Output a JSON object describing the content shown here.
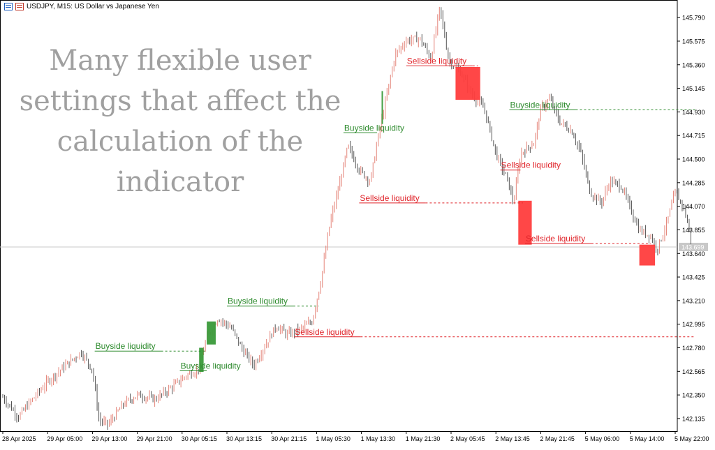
{
  "header": {
    "symbol_line": "USDJPY, M15:  US Dollar vs Japanese Yen"
  },
  "overlay": {
    "lines": [
      "Many flexible user",
      "settings that affect the",
      "calculation of the",
      "indicator"
    ]
  },
  "chart_data": {
    "type": "candlestick",
    "symbol": "USDJPY",
    "timeframe": "M15",
    "title": "USDJPY, M15:  US Dollar vs Japanese Yen",
    "current_price": "143.699",
    "ylim": [
      142.02,
      145.95
    ],
    "y_ticks": [
      "145.790",
      "145.575",
      "145.360",
      "145.145",
      "144.930",
      "144.715",
      "144.500",
      "144.285",
      "144.070",
      "143.855",
      "143.640",
      "143.425",
      "143.210",
      "142.995",
      "142.780",
      "142.565",
      "142.350",
      "142.135"
    ],
    "x_ticks": [
      "28 Apr 2025",
      "29 Apr 05:00",
      "29 Apr 13:00",
      "29 Apr 21:00",
      "30 Apr 05:15",
      "30 Apr 13:15",
      "30 Apr 21:15",
      "1 May 05:30",
      "1 May 13:30",
      "1 May 21:30",
      "2 May 05:45",
      "2 May 13:45",
      "2 May 21:45",
      "5 May 06:00",
      "5 May 14:00",
      "5 May 22:00"
    ],
    "price_path": [
      [
        0,
        142.33
      ],
      [
        0.35,
        142.15
      ],
      [
        0.6,
        142.28
      ],
      [
        1.0,
        142.47
      ],
      [
        1.4,
        142.62
      ],
      [
        1.75,
        142.74
      ],
      [
        2.0,
        142.58
      ],
      [
        2.15,
        142.12
      ],
      [
        2.35,
        142.08
      ],
      [
        2.7,
        142.27
      ],
      [
        3.0,
        142.35
      ],
      [
        3.4,
        142.31
      ],
      [
        3.8,
        142.43
      ],
      [
        4.1,
        142.53
      ],
      [
        4.35,
        142.58
      ],
      [
        4.55,
        142.87
      ],
      [
        4.8,
        143.05
      ],
      [
        5.1,
        142.96
      ],
      [
        5.35,
        142.76
      ],
      [
        5.6,
        142.62
      ],
      [
        5.85,
        142.8
      ],
      [
        6.1,
        142.98
      ],
      [
        6.35,
        142.9
      ],
      [
        6.65,
        142.95
      ],
      [
        6.9,
        143.02
      ],
      [
        7.1,
        143.4
      ],
      [
        7.3,
        143.92
      ],
      [
        7.5,
        144.25
      ],
      [
        7.7,
        144.62
      ],
      [
        7.95,
        144.4
      ],
      [
        8.2,
        144.3
      ],
      [
        8.35,
        144.65
      ],
      [
        8.55,
        145.05
      ],
      [
        8.75,
        145.45
      ],
      [
        9.0,
        145.58
      ],
      [
        9.3,
        145.6
      ],
      [
        9.55,
        145.42
      ],
      [
        9.75,
        145.88
      ],
      [
        9.95,
        145.4
      ],
      [
        10.2,
        145.3
      ],
      [
        10.45,
        145.1
      ],
      [
        10.75,
        144.95
      ],
      [
        11.0,
        144.55
      ],
      [
        11.25,
        144.32
      ],
      [
        11.4,
        144.1
      ],
      [
        11.55,
        144.55
      ],
      [
        11.85,
        144.65
      ],
      [
        12.0,
        144.95
      ],
      [
        12.2,
        145.05
      ],
      [
        12.4,
        144.85
      ],
      [
        12.7,
        144.75
      ],
      [
        12.9,
        144.55
      ],
      [
        13.1,
        144.2
      ],
      [
        13.35,
        144.1
      ],
      [
        13.55,
        144.3
      ],
      [
        13.8,
        144.25
      ],
      [
        14.0,
        144.05
      ],
      [
        14.2,
        143.85
      ],
      [
        14.45,
        143.8
      ],
      [
        14.6,
        143.68
      ],
      [
        14.8,
        143.9
      ],
      [
        15.0,
        144.2
      ],
      [
        15.2,
        144.05
      ],
      [
        15.35,
        143.78
      ]
    ],
    "annotations": [
      {
        "label": "Buyside liquidity",
        "kind": "buyside",
        "price": 142.75,
        "x_from": 2.05,
        "x_to": 4.55
      },
      {
        "label": "Buyside liquidity",
        "kind": "buyside",
        "price": 142.57,
        "x_from": 3.95,
        "x_to": 4.55
      },
      {
        "label": "Buyside liquidity",
        "kind": "buyside",
        "price": 143.16,
        "x_from": 5.0,
        "x_to": 7.05
      },
      {
        "label": "Buyside liquidity",
        "kind": "buyside",
        "price": 144.74,
        "x_from": 7.6,
        "x_to": 8.35
      },
      {
        "label": "Buyside liquidity",
        "kind": "buyside",
        "price": 144.95,
        "x_from": 11.3,
        "x_to": 15.45
      },
      {
        "label": "Sellside liquidity",
        "kind": "sellside",
        "price": 142.88,
        "x_from": 6.5,
        "x_to": 15.45
      },
      {
        "label": "Sellside liquidity",
        "kind": "sellside",
        "price": 144.1,
        "x_from": 7.95,
        "x_to": 11.6
      },
      {
        "label": "Sellside liquidity",
        "kind": "sellside",
        "price": 145.35,
        "x_from": 9.0,
        "x_to": 10.6
      },
      {
        "label": "Sellside liquidity",
        "kind": "sellside",
        "price": 144.4,
        "x_from": 11.1,
        "x_to": 11.55
      },
      {
        "label": "Sellside liquidity",
        "kind": "sellside",
        "price": 143.73,
        "x_from": 11.65,
        "x_to": 14.45
      }
    ],
    "zones": [
      {
        "kind": "buyside",
        "x_from": 4.55,
        "x_to": 4.75,
        "p_high": 143.02,
        "p_low": 142.81
      },
      {
        "kind": "buyside",
        "x_from": 4.38,
        "x_to": 4.48,
        "p_high": 142.78,
        "p_low": 142.56
      },
      {
        "kind": "buyside",
        "x_from": 8.45,
        "x_to": 8.48,
        "p_high": 145.12,
        "p_low": 144.82
      },
      {
        "kind": "sellside",
        "x_from": 10.1,
        "x_to": 10.65,
        "p_high": 145.34,
        "p_low": 145.04
      },
      {
        "kind": "sellside",
        "x_from": 11.5,
        "x_to": 11.8,
        "p_high": 144.12,
        "p_low": 143.72
      },
      {
        "kind": "sellside",
        "x_from": 14.2,
        "x_to": 14.55,
        "p_high": 143.72,
        "p_low": 143.53
      }
    ],
    "colors": {
      "bull": "#e48479",
      "bear": "#555555",
      "buyside": "#2e8b2e",
      "sellside": "#e0252b",
      "sellside_zone": "#ff3d3d",
      "buyside_zone": "#3a9a3a",
      "grid_line": "#c8c8c8",
      "axis": "#000000"
    }
  }
}
